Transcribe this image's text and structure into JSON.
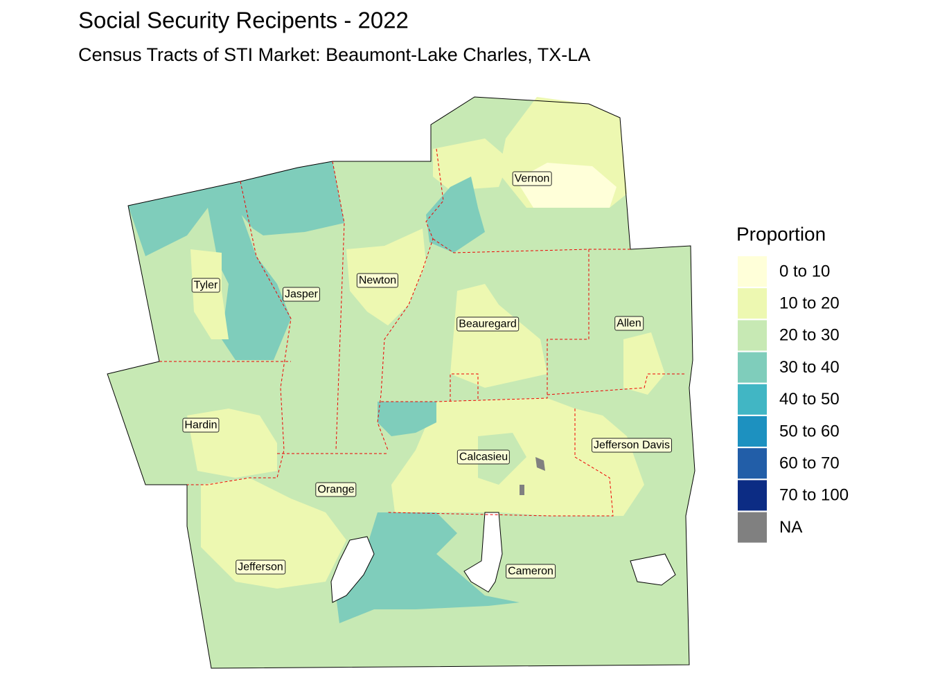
{
  "title": "Social Security Recipents - 2022",
  "subtitle": "Census Tracts of STI Market: Beaumont-Lake Charles, TX-LA",
  "legend": {
    "title": "Proportion",
    "items": [
      {
        "label": "0 to 10",
        "color": "#ffffd9"
      },
      {
        "label": "10 to 20",
        "color": "#edf8b1"
      },
      {
        "label": "20 to 30",
        "color": "#c7e9b4"
      },
      {
        "label": "30 to 40",
        "color": "#7fcdbb"
      },
      {
        "label": "40 to 50",
        "color": "#41b6c4"
      },
      {
        "label": "50 to 60",
        "color": "#1d91c0"
      },
      {
        "label": "60 to 70",
        "color": "#225ea8"
      },
      {
        "label": "70 to 100",
        "color": "#0c2c84"
      },
      {
        "label": "NA",
        "color": "#808080"
      }
    ]
  },
  "counties": [
    "Vernon",
    "Tyler",
    "Jasper",
    "Newton",
    "Beauregard",
    "Allen",
    "Hardin",
    "Calcasieu",
    "Jefferson Davis",
    "Orange",
    "Jefferson",
    "Cameron"
  ]
}
